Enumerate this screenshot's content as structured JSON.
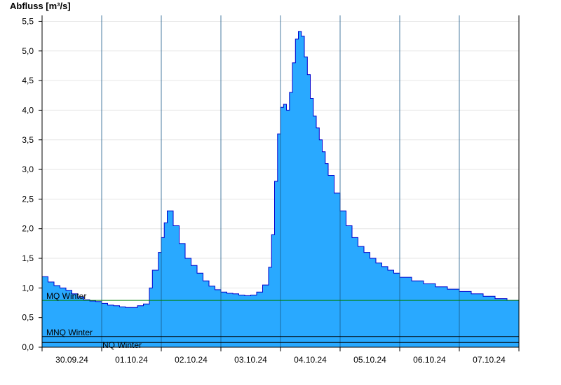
{
  "chart_data": {
    "type": "area",
    "ylabel": "Abfluss [m³/s]",
    "xlabel": "",
    "title": "",
    "ylim": [
      0,
      5.6
    ],
    "y_ticks": [
      "0,0",
      "0,5",
      "1,0",
      "1,5",
      "2,0",
      "2,5",
      "3,0",
      "3,5",
      "4,0",
      "4,5",
      "5,0",
      "5,5"
    ],
    "x_ticks": [
      "30.09.24",
      "01.10.24",
      "02.10.24",
      "03.10.24",
      "04.10.24",
      "05.10.24",
      "06.10.24",
      "07.10.24"
    ],
    "grid": true,
    "fill_color": "#29a9ff",
    "line_color": "#0000cc",
    "series": [
      {
        "x_days": [
          0.0,
          0.1,
          0.2,
          0.3,
          0.4,
          0.5,
          0.6,
          0.7,
          0.8,
          0.9,
          1.0,
          1.1,
          1.2,
          1.3,
          1.4,
          1.5,
          1.6,
          1.7,
          1.8,
          1.85,
          1.95,
          2.0,
          2.05,
          2.1,
          2.2,
          2.3,
          2.4,
          2.5,
          2.6,
          2.7,
          2.8,
          2.9,
          3.0,
          3.1,
          3.2,
          3.3,
          3.4,
          3.5,
          3.6,
          3.7,
          3.8,
          3.85,
          3.9,
          3.95,
          4.0,
          4.05,
          4.1,
          4.15,
          4.2,
          4.25,
          4.3,
          4.35,
          4.4,
          4.45,
          4.5,
          4.55,
          4.6,
          4.65,
          4.7,
          4.75,
          4.8,
          4.9,
          5.0,
          5.1,
          5.2,
          5.3,
          5.4,
          5.5,
          5.6,
          5.7,
          5.8,
          5.9,
          6.0,
          6.2,
          6.4,
          6.6,
          6.8,
          7.0,
          7.2,
          7.4,
          7.6,
          7.8,
          8.0
        ],
        "values": [
          1.19,
          1.1,
          1.04,
          1.0,
          0.96,
          0.9,
          0.85,
          0.8,
          0.78,
          0.77,
          0.74,
          0.71,
          0.7,
          0.68,
          0.67,
          0.67,
          0.7,
          0.73,
          1.0,
          1.3,
          1.6,
          1.85,
          2.1,
          2.3,
          2.05,
          1.75,
          1.5,
          1.38,
          1.25,
          1.12,
          1.03,
          0.97,
          0.93,
          0.91,
          0.9,
          0.88,
          0.87,
          0.88,
          0.93,
          1.05,
          1.35,
          1.9,
          2.8,
          3.6,
          4.05,
          4.1,
          4.0,
          4.3,
          4.8,
          5.2,
          5.33,
          5.25,
          4.9,
          4.6,
          4.2,
          3.9,
          3.7,
          3.5,
          3.3,
          3.1,
          2.9,
          2.6,
          2.3,
          2.05,
          1.85,
          1.7,
          1.6,
          1.5,
          1.42,
          1.36,
          1.3,
          1.25,
          1.18,
          1.12,
          1.07,
          1.02,
          0.98,
          0.94,
          0.9,
          0.86,
          0.82,
          0.79,
          0.78
        ]
      }
    ],
    "reference_lines": [
      {
        "name": "MQ Winter",
        "value": 0.79,
        "color": "#008000"
      },
      {
        "name": "MNQ Winter",
        "value": 0.18,
        "color": "#000000"
      },
      {
        "name": "NQ Winter",
        "value": 0.08,
        "color": "#000000"
      }
    ]
  }
}
